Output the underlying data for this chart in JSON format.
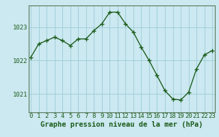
{
  "x": [
    0,
    1,
    2,
    3,
    4,
    5,
    6,
    7,
    8,
    9,
    10,
    11,
    12,
    13,
    14,
    15,
    16,
    17,
    18,
    19,
    20,
    21,
    22,
    23
  ],
  "y": [
    1022.1,
    1022.5,
    1022.6,
    1022.7,
    1022.6,
    1022.45,
    1022.65,
    1022.65,
    1022.9,
    1023.1,
    1023.45,
    1023.45,
    1023.1,
    1022.85,
    1022.4,
    1022.0,
    1021.55,
    1021.1,
    1020.85,
    1020.82,
    1021.05,
    1021.75,
    1022.17,
    1022.3
  ],
  "line_color": "#1a5c1a",
  "marker": "+",
  "marker_size": 4,
  "marker_lw": 1.0,
  "line_width": 1.0,
  "background_color": "#cce8f0",
  "grid_color": "#99ccd8",
  "xlabel": "Graphe pression niveau de la mer (hPa)",
  "xlabel_fontsize": 7.5,
  "yticks": [
    1021,
    1022,
    1023
  ],
  "xticks": [
    0,
    1,
    2,
    3,
    4,
    5,
    6,
    7,
    8,
    9,
    10,
    11,
    12,
    13,
    14,
    15,
    16,
    17,
    18,
    19,
    20,
    21,
    22,
    23
  ],
  "ylim": [
    1020.45,
    1023.65
  ],
  "xlim": [
    -0.3,
    23.3
  ],
  "tick_fontsize": 6.5,
  "axis_color": "#1a5c1a",
  "spine_color": "#557755"
}
